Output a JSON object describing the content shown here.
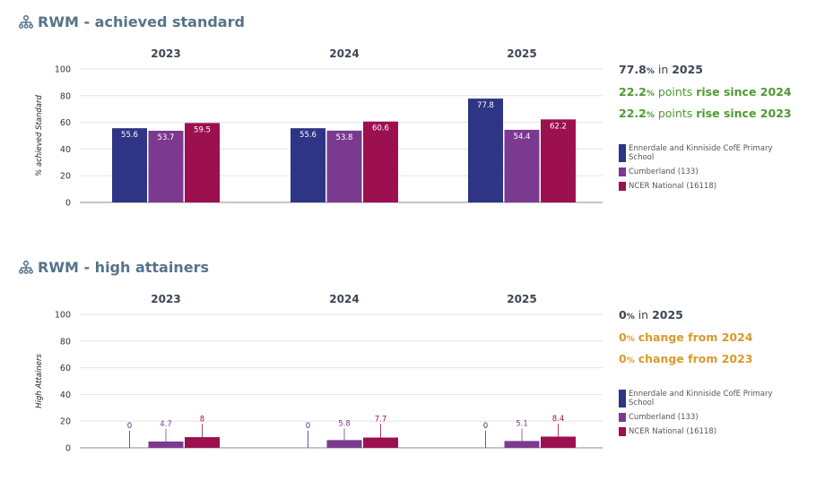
{
  "colors": {
    "school": "#2e3585",
    "cumberland": "#7b3a8f",
    "national": "#9c1050",
    "title": "#56738a",
    "green": "#4e9a33",
    "orange": "#d99a2b",
    "dark": "#3d4654"
  },
  "sections": [
    {
      "title": "RWM - achieved standard",
      "stats": [
        {
          "num": "77.8",
          "pct": "%",
          "pre": " in ",
          "bold": "2025",
          "color": "dark"
        },
        {
          "num": "22.2",
          "pct": "%",
          "pre": " points ",
          "bold": "rise since 2024",
          "color": "green"
        },
        {
          "num": "22.2",
          "pct": "%",
          "pre": " points ",
          "bold": "rise since 2023",
          "color": "green"
        }
      ],
      "legend": [
        "Ennerdale and Kinniside CofE Primary School",
        "Cumberland (133)",
        "NCER National (16118)"
      ],
      "legend_colors": [
        "school",
        "cumberland",
        "national"
      ]
    },
    {
      "title": "RWM - high attainers",
      "stats": [
        {
          "num": "0",
          "pct": "%",
          "pre": " in ",
          "bold": "2025",
          "color": "dark"
        },
        {
          "num": "0",
          "pct": "%",
          "pre": " ",
          "bold": "change from 2024",
          "color": "orange"
        },
        {
          "num": "0",
          "pct": "%",
          "pre": " ",
          "bold": "change from 2023",
          "color": "orange"
        }
      ],
      "legend": [
        "Ennerdale and Kinniside CofE Primary School",
        "Cumberland (133)",
        "NCER National (16118)"
      ],
      "legend_colors": [
        "school",
        "cumberland",
        "national"
      ]
    }
  ],
  "chart_data": [
    {
      "type": "bar",
      "title": "RWM - achieved standard",
      "categories": [
        "2023",
        "2024",
        "2025"
      ],
      "ylabel": "% achieved Standard",
      "ylim": [
        0,
        100
      ],
      "yticks": [
        0,
        20,
        40,
        60,
        80,
        100
      ],
      "grid": true,
      "series": [
        {
          "name": "Ennerdale and Kinniside CofE Primary School",
          "color": "school",
          "values": [
            55.6,
            55.6,
            77.8
          ],
          "labels": [
            "55.6",
            "55.6",
            "77.8"
          ]
        },
        {
          "name": "Cumberland (133)",
          "color": "cumberland",
          "values": [
            53.7,
            53.8,
            54.4
          ],
          "labels": [
            "53.7",
            "53.8",
            "54.4"
          ]
        },
        {
          "name": "NCER National (16118)",
          "color": "national",
          "values": [
            59.5,
            60.6,
            62.2
          ],
          "labels": [
            "59.5",
            "60.6",
            "62.2"
          ]
        }
      ]
    },
    {
      "type": "bar",
      "title": "RWM - high attainers",
      "categories": [
        "2023",
        "2024",
        "2025"
      ],
      "ylabel": "High Attainers",
      "ylim": [
        0,
        100
      ],
      "yticks": [
        0,
        20,
        40,
        60,
        80,
        100
      ],
      "grid": true,
      "series": [
        {
          "name": "Ennerdale and Kinniside CofE Primary School",
          "color": "school",
          "values": [
            0,
            0,
            0
          ],
          "labels": [
            "0",
            "0",
            "0"
          ]
        },
        {
          "name": "Cumberland (133)",
          "color": "cumberland",
          "values": [
            4.7,
            5.8,
            5.1
          ],
          "labels": [
            "4.7",
            "5.8",
            "5.1"
          ]
        },
        {
          "name": "NCER National (16118)",
          "color": "national",
          "values": [
            8,
            7.7,
            8.4
          ],
          "labels": [
            "8",
            "7.7",
            "8.4"
          ]
        }
      ]
    }
  ]
}
